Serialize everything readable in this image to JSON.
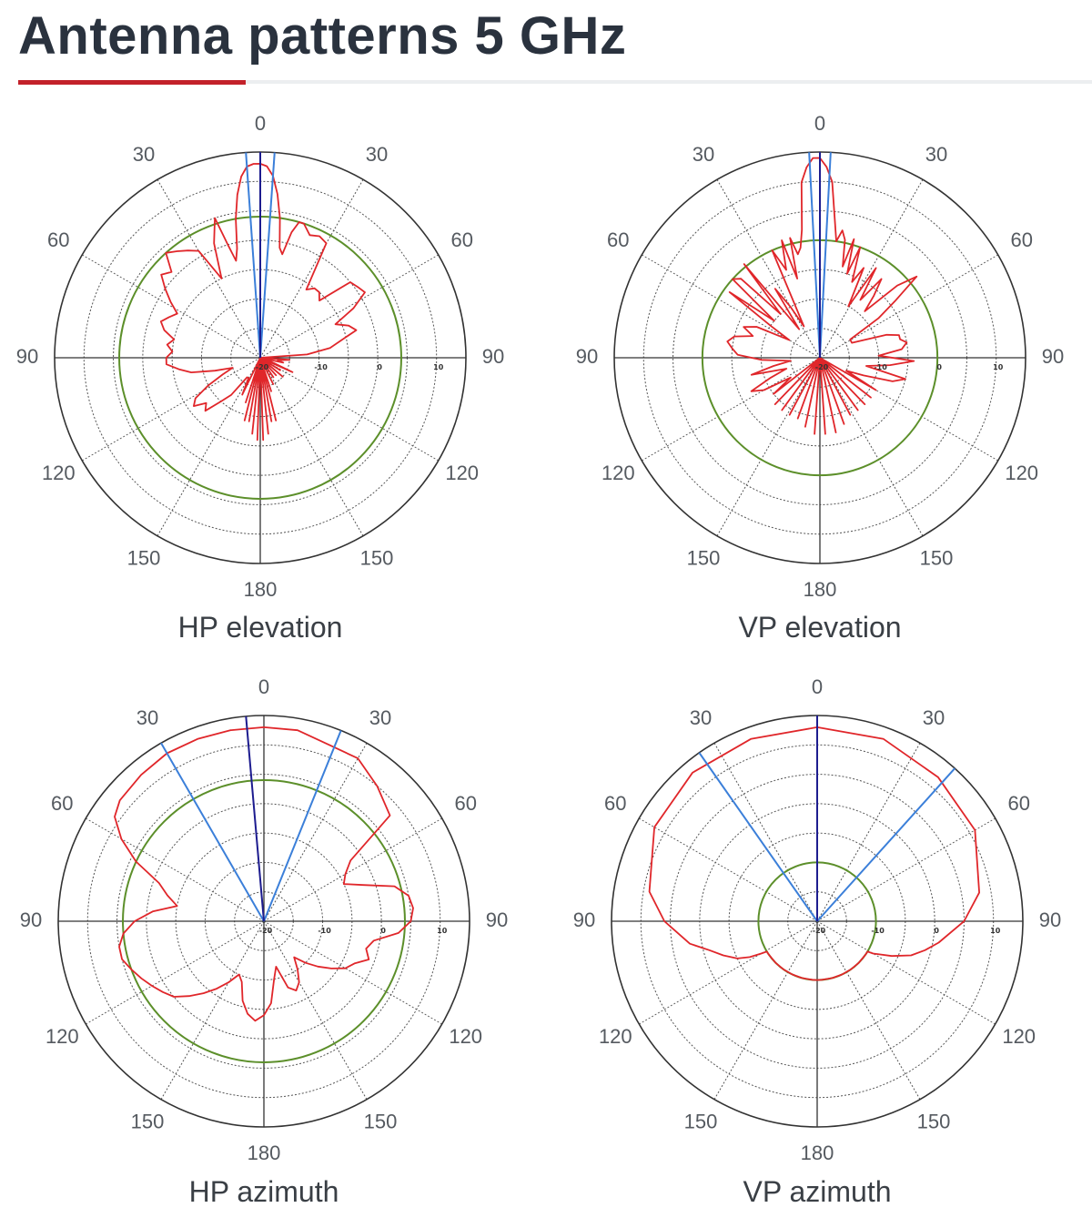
{
  "title": "Antenna patterns 5 GHz",
  "colors": {
    "accent": "#c3212a",
    "pattern": "#e0262a",
    "beam": "#3b7fd9",
    "boresight": "#1d1c8f",
    "ref_ring": "#5c8f2a",
    "grid": "#444444"
  },
  "chart_data": [
    {
      "type": "polar",
      "title": "HP elevation",
      "angle_ticks": [
        "0",
        "30",
        "60",
        "90",
        "120",
        "150",
        "180",
        "150",
        "120",
        "90",
        "60",
        "30"
      ],
      "radial_ticks": [
        "-20",
        "-10",
        "0",
        "10"
      ],
      "rlim": [
        -20,
        15
      ],
      "reference_ring_db": 4,
      "beam_lines_deg": [
        -4,
        4
      ],
      "boresight_deg": [
        0
      ],
      "pattern": {
        "angles": [
          0,
          2,
          4,
          6,
          8,
          10,
          12,
          14,
          16,
          18,
          22,
          26,
          30,
          34,
          38,
          42,
          46,
          50,
          54,
          58,
          62,
          66,
          70,
          74,
          78,
          82,
          86,
          90,
          94,
          98,
          102,
          106,
          110,
          114,
          118,
          122,
          126,
          130,
          134,
          138,
          142,
          146,
          150,
          154,
          158,
          162,
          164,
          166,
          168,
          170,
          172,
          174,
          176,
          178,
          180,
          182,
          184,
          186,
          188,
          190,
          192,
          194,
          196,
          198,
          202,
          206,
          210,
          214,
          218,
          222,
          226,
          230,
          234,
          238,
          242,
          246,
          250,
          254,
          258,
          262,
          266,
          270,
          274,
          278,
          282,
          286,
          290,
          294,
          298,
          302,
          306,
          310,
          314,
          318,
          322,
          326,
          330,
          334,
          338,
          342,
          344,
          346,
          348,
          350,
          352,
          354,
          356,
          358
        ],
        "db": [
          13,
          12.6,
          11,
          8,
          4,
          -1,
          -2,
          2,
          4,
          4,
          2.5,
          3,
          2.5,
          -6,
          -5,
          -5,
          -6,
          0,
          0.5,
          1,
          -2,
          -6,
          -4,
          -3,
          -6,
          -8,
          -12,
          -20,
          -15,
          -17,
          -16,
          -20,
          -18,
          -14,
          -20,
          -16,
          -20,
          -15,
          -20,
          -16,
          -20,
          -16,
          -20,
          -15,
          -20,
          -14,
          -20,
          -9,
          -20,
          -9,
          -20,
          -7,
          -20,
          -6,
          -20,
          -6,
          -20,
          -7,
          -20,
          -9,
          -20,
          -9,
          -20,
          -12,
          -20,
          -13,
          -16,
          -16,
          -12,
          -10,
          -7,
          -8,
          -6,
          -7,
          -10,
          -13,
          -15,
          -12,
          -8,
          -6,
          -4,
          -4,
          -5,
          -4,
          -5,
          -3,
          -2,
          -3,
          -4,
          -2,
          0,
          2,
          1,
          4,
          3,
          2,
          1,
          -5,
          1,
          5,
          0,
          -3,
          -1,
          4,
          8,
          11,
          12.6,
          13
        ]
      }
    },
    {
      "type": "polar",
      "title": "VP elevation",
      "angle_ticks": [
        "0",
        "30",
        "60",
        "90",
        "120",
        "150",
        "180",
        "150",
        "120",
        "90",
        "60",
        "30"
      ],
      "radial_ticks": [
        "-20",
        "-10",
        "0",
        "10"
      ],
      "rlim": [
        -20,
        15
      ],
      "reference_ring_db": 0,
      "beam_lines_deg": [
        -3,
        3
      ],
      "boresight_deg": [
        0
      ],
      "pattern": {
        "angles": [
          0,
          2,
          4,
          6,
          8,
          10,
          12,
          14,
          16,
          18,
          20,
          23,
          26,
          29,
          32,
          35,
          38,
          41,
          44,
          47,
          50,
          53,
          56,
          59,
          62,
          65,
          68,
          71,
          74,
          77,
          80,
          84,
          88,
          92,
          96,
          100,
          104,
          108,
          112,
          116,
          120,
          124,
          128,
          132,
          136,
          140,
          144,
          148,
          152,
          156,
          160,
          164,
          168,
          172,
          176,
          180,
          184,
          188,
          192,
          196,
          200,
          204,
          208,
          212,
          216,
          220,
          224,
          228,
          232,
          236,
          240,
          244,
          248,
          252,
          256,
          260,
          264,
          268,
          272,
          276,
          280,
          284,
          288,
          292,
          296,
          300,
          303,
          306,
          309,
          312,
          315,
          318,
          321,
          324,
          327,
          330,
          333,
          336,
          339,
          342,
          344,
          346,
          348,
          350,
          352,
          354,
          356,
          358
        ],
        "db": [
          14,
          12.5,
          10,
          4,
          0,
          2,
          0.5,
          -4,
          1,
          -5,
          0,
          -6,
          -3,
          -10,
          -2,
          -8,
          -3,
          -6,
          -9,
          -2,
          1.5,
          -4,
          -8,
          -14,
          -14,
          -14,
          -12,
          -8,
          -6,
          -6,
          -5,
          -6,
          -10,
          -4,
          -8,
          -12,
          -5,
          -7,
          -12,
          -15,
          -9,
          -20,
          -9,
          -20,
          -9,
          -20,
          -9,
          -20,
          -9,
          -20,
          -8,
          -20,
          -7,
          -20,
          -7,
          -20,
          -7,
          -20,
          -8,
          -20,
          -9,
          -20,
          -9,
          -20,
          -9,
          -20,
          -9,
          -20,
          -10,
          -14,
          -9,
          -7,
          -11,
          -14,
          -8,
          -12,
          -15,
          -10,
          -6,
          -5,
          -4,
          -5,
          -8,
          -6,
          -8,
          -14,
          -10,
          -1,
          -10,
          0,
          -1,
          -10,
          0.5,
          -14,
          -6,
          -10,
          -14,
          0,
          -4,
          1,
          -6,
          1,
          -2,
          -1,
          2,
          10,
          12.5,
          14
        ]
      }
    },
    {
      "type": "polar",
      "title": "HP azimuth",
      "angle_ticks": [
        "0",
        "30",
        "60",
        "90",
        "120",
        "150",
        "180",
        "150",
        "120",
        "90",
        "60",
        "30"
      ],
      "radial_ticks": [
        "-20",
        "-10",
        "0",
        "10"
      ],
      "rlim": [
        -20,
        15
      ],
      "reference_ring_db": 4,
      "beam_lines_deg": [
        -30,
        22
      ],
      "boresight_deg": [
        -5
      ],
      "pattern": {
        "angles": [
          0,
          10,
          20,
          30,
          40,
          50,
          55,
          60,
          65,
          70,
          75,
          80,
          85,
          90,
          95,
          100,
          105,
          110,
          115,
          120,
          125,
          130,
          135,
          140,
          145,
          150,
          155,
          160,
          165,
          170,
          175,
          180,
          185,
          190,
          195,
          200,
          205,
          210,
          215,
          220,
          225,
          230,
          235,
          240,
          245,
          250,
          255,
          260,
          265,
          270,
          275,
          280,
          285,
          290,
          295,
          300,
          305,
          310,
          320,
          330,
          340,
          350,
          360
        ],
        "db": [
          13,
          13,
          12,
          12,
          10,
          8,
          -2,
          -4,
          -5,
          -2,
          3,
          5,
          5.5,
          5,
          3,
          -1,
          -2,
          -1,
          -3,
          -4,
          -6,
          -8,
          -10,
          -12,
          -10,
          -8,
          -7,
          -8,
          -12,
          -10,
          -6,
          -4,
          -3,
          -4,
          -6,
          -9,
          -10,
          -8,
          -6,
          -4,
          -2,
          0,
          1,
          2,
          3,
          4,
          5,
          5,
          4,
          2,
          -1,
          -5,
          -3,
          -1,
          4,
          8,
          11,
          12,
          12.5,
          13,
          13,
          13,
          13
        ]
      }
    },
    {
      "type": "polar",
      "title": "VP azimuth",
      "angle_ticks": [
        "0",
        "30",
        "60",
        "90",
        "120",
        "150",
        "180",
        "150",
        "120",
        "90",
        "60",
        "30"
      ],
      "radial_ticks": [
        "-20",
        "-10",
        "0",
        "10"
      ],
      "rlim": [
        -20,
        15
      ],
      "reference_ring_db": -10,
      "beam_lines_deg": [
        -35,
        42
      ],
      "boresight_deg": [
        0
      ],
      "pattern": {
        "angles": [
          0,
          20,
          40,
          60,
          80,
          90,
          100,
          105,
          110,
          115,
          118,
          120,
          121,
          122,
          125,
          135,
          145,
          155,
          165,
          175,
          180,
          185,
          195,
          205,
          215,
          225,
          235,
          238,
          239,
          240,
          242,
          245,
          250,
          255,
          260,
          270,
          280,
          300,
          320,
          340,
          360
        ],
        "db": [
          13,
          13,
          12,
          11,
          8,
          5,
          1,
          -1,
          -3,
          -6,
          -8,
          -9,
          -10,
          -10,
          -10,
          -10,
          -10,
          -10,
          -10,
          -10,
          -10,
          -10,
          -10,
          -10,
          -10,
          -10,
          -10,
          -10,
          -10,
          -9,
          -7,
          -5,
          -3,
          -1,
          2,
          6,
          9,
          12,
          13,
          13,
          13
        ]
      }
    }
  ]
}
